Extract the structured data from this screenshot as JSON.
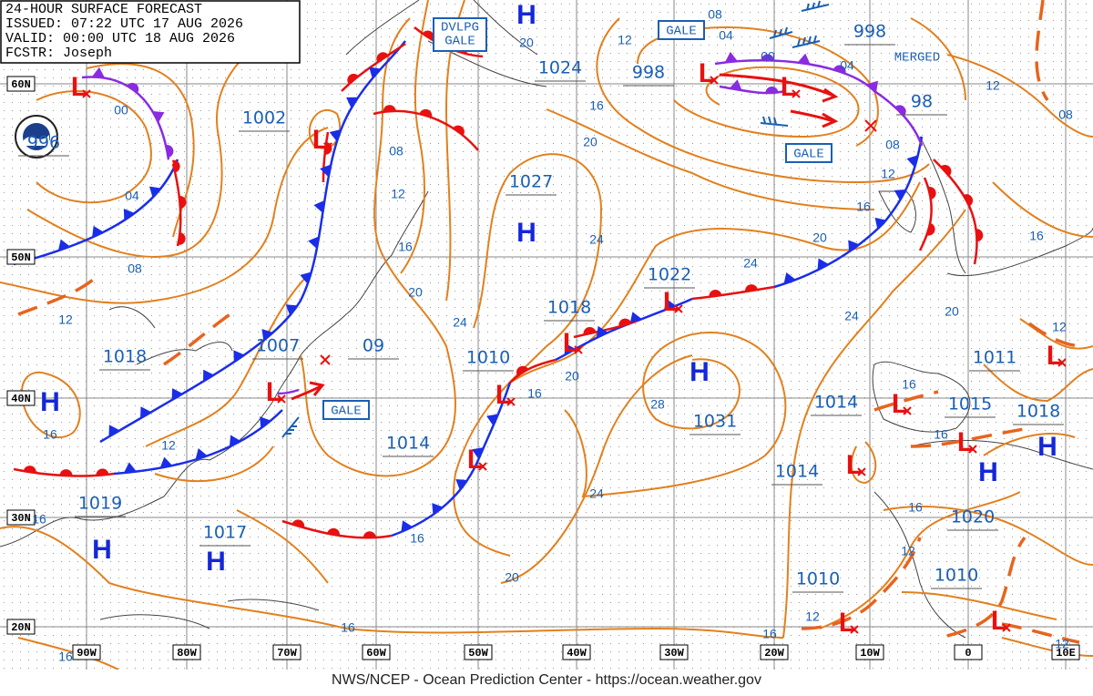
{
  "header": {
    "lines": [
      "24-HOUR SURFACE FORECAST",
      "ISSUED: 07:22 UTC 17 AUG 2026",
      "VALID: 00:00 UTC 18 AUG 2026",
      "FCSTR: Joseph"
    ]
  },
  "footer": "NWS/NCEP - Ocean Prediction Center - https://ocean.weather.gov",
  "latitude_labels": [
    "60N",
    "50N",
    "40N",
    "30N",
    "20N"
  ],
  "longitude_labels": [
    "90W",
    "80W",
    "70W",
    "60W",
    "50W",
    "40W",
    "30W",
    "20W",
    "10W",
    "0",
    "10E"
  ],
  "symbols": {
    "high": "H",
    "low": "L"
  },
  "pressure_labels": [
    "996",
    "1002",
    "1024",
    "998",
    "998",
    "1027",
    "1022",
    "1018",
    "1010",
    "1007",
    "09",
    "1018",
    "1014",
    "1031",
    "1014",
    "1015",
    "1011",
    "1018",
    "1014",
    "1020",
    "1019",
    "1017",
    "1010",
    "1010",
    "98"
  ],
  "isobar_labels": [
    "08",
    "04",
    "00",
    "04",
    "08",
    "12",
    "16",
    "20",
    "24",
    "24",
    "20",
    "16",
    "12",
    "08",
    "12",
    "12",
    "16",
    "20",
    "24",
    "24",
    "20",
    "16",
    "12",
    "08",
    "20",
    "16",
    "28",
    "24",
    "20",
    "16",
    "16",
    "16",
    "12",
    "12",
    "16",
    "16",
    "16",
    "12",
    "16",
    "16",
    "12",
    "16",
    "12",
    "08",
    "04",
    "00",
    "20"
  ],
  "annotations": {
    "developing_gale": [
      "DVLPG",
      "GALE"
    ],
    "gale": "GALE",
    "merged": "MERGED"
  }
}
